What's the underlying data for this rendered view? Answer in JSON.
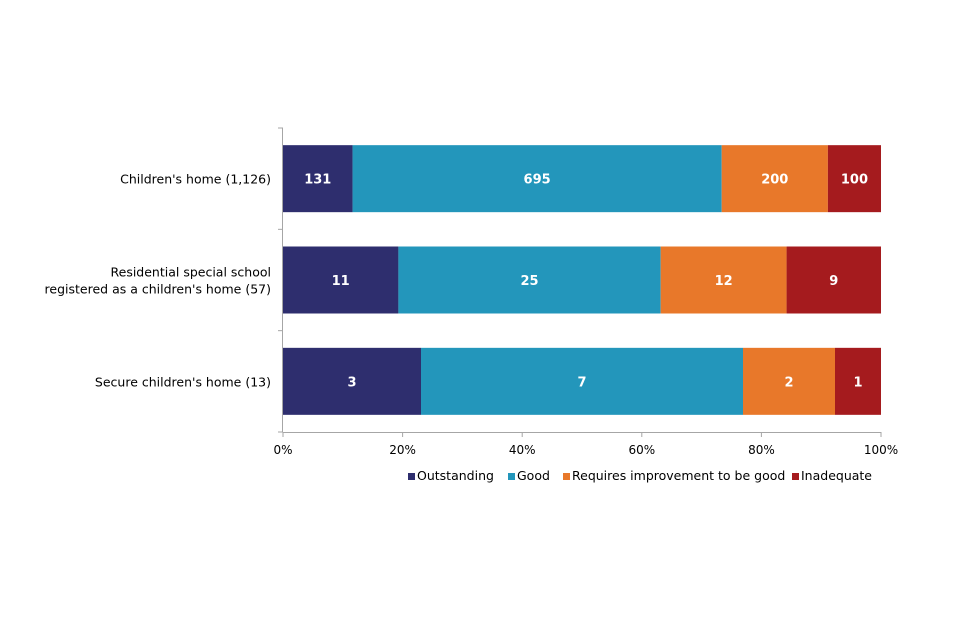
{
  "chart_data": {
    "type": "bar",
    "orientation": "horizontal",
    "stacked": "percent",
    "categories": [
      [
        "Children's home (1,126)"
      ],
      [
        "Residential special school",
        "registered as a children's home (57)"
      ],
      [
        "Secure children's home (13)"
      ]
    ],
    "series": [
      {
        "name": "Outstanding",
        "color": "#2e2e6e",
        "values": [
          131,
          11,
          3
        ]
      },
      {
        "name": "Good",
        "color": "#2396bb",
        "values": [
          695,
          25,
          7
        ]
      },
      {
        "name": "Requires improvement to be good",
        "color": "#e8782a",
        "values": [
          200,
          12,
          2
        ]
      },
      {
        "name": "Inadequate",
        "color": "#a51b1e",
        "values": [
          100,
          9,
          1
        ]
      }
    ],
    "x_ticks": [
      "0%",
      "20%",
      "40%",
      "60%",
      "80%",
      "100%"
    ],
    "xlim": [
      0,
      100
    ],
    "legend_position": "bottom-right",
    "grid": false,
    "title": "",
    "xlabel": "",
    "ylabel": ""
  }
}
